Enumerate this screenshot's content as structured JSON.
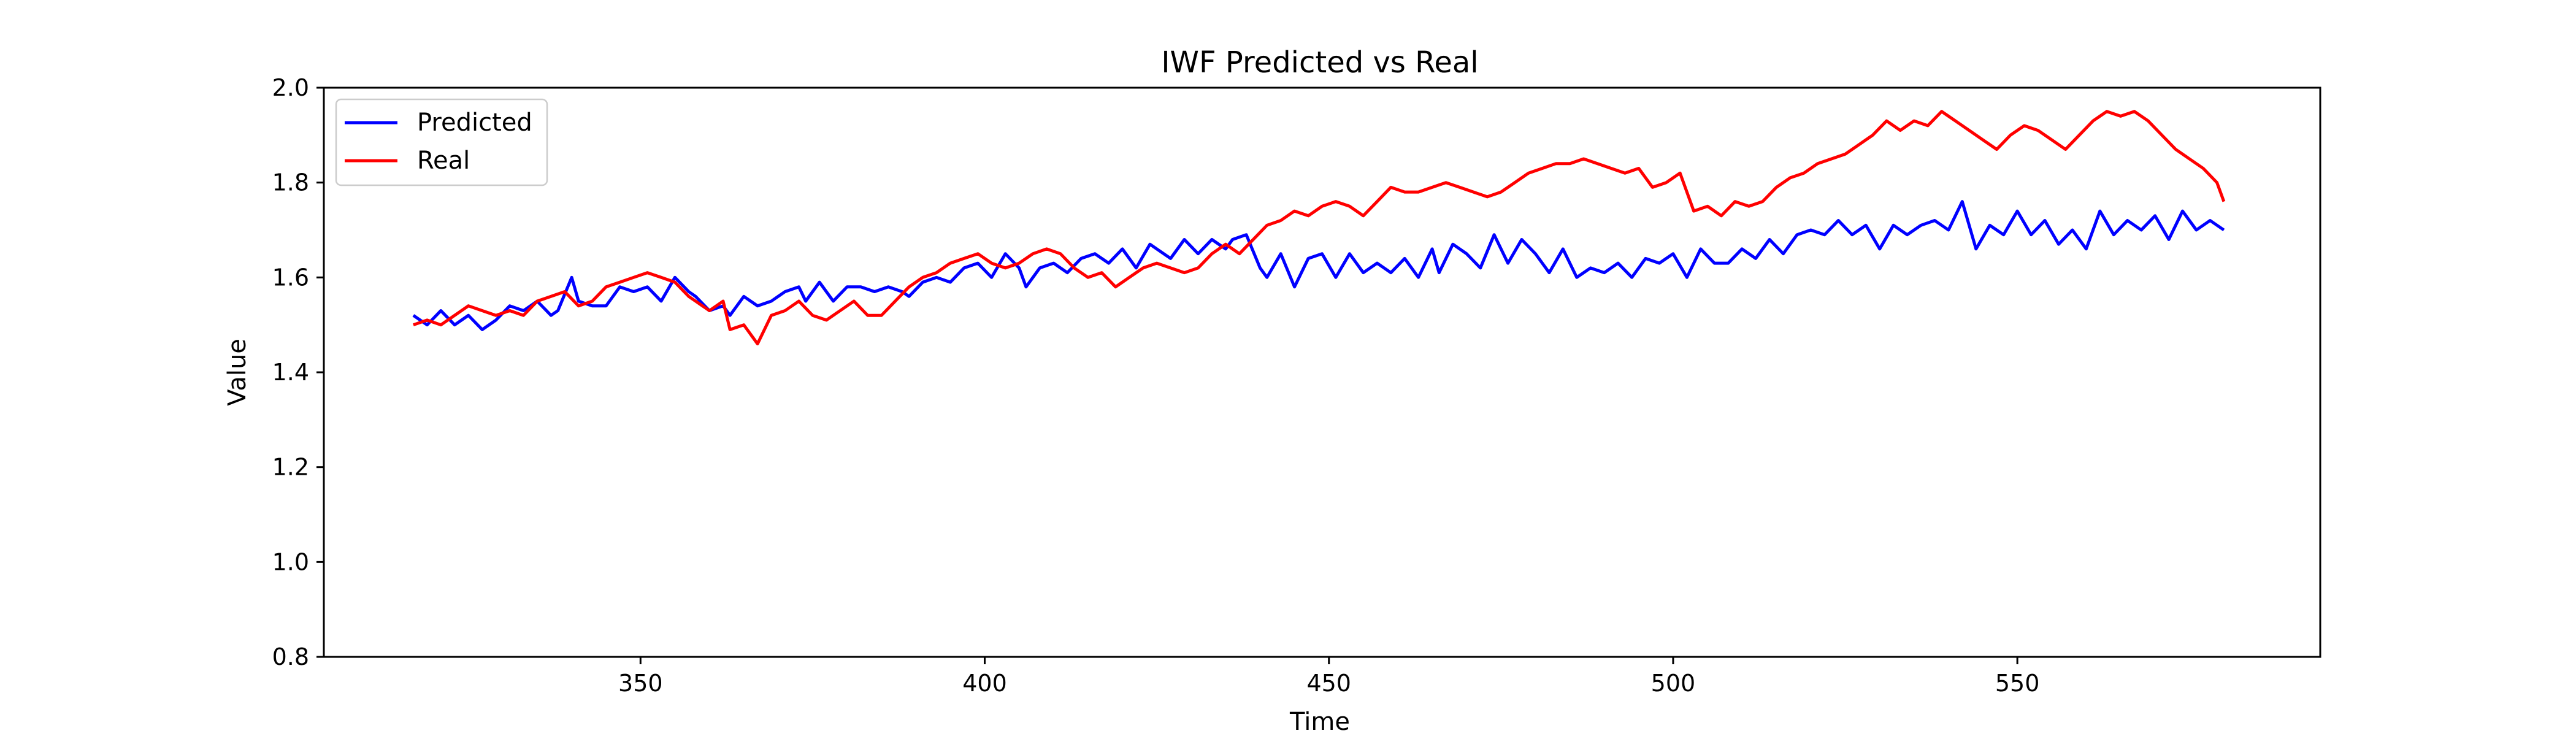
{
  "chart_data": {
    "type": "line",
    "title": "IWF Predicted vs Real",
    "xlabel": "Time",
    "ylabel": "Value",
    "xlim": [
      304,
      594
    ],
    "ylim": [
      0.8,
      2.0
    ],
    "xticks": [
      350,
      400,
      450,
      500,
      550
    ],
    "yticks": [
      0.8,
      1.0,
      1.2,
      1.4,
      1.6,
      1.8,
      2.0
    ],
    "xtick_labels": [
      "350",
      "400",
      "450",
      "500",
      "550"
    ],
    "ytick_labels": [
      "0.8",
      "1.0",
      "1.2",
      "1.4",
      "1.6",
      "1.8",
      "2.0"
    ],
    "grid": false,
    "legend_position": "upper-left",
    "series": [
      {
        "name": "Predicted",
        "color": "#0000ff",
        "points": [
          [
            317,
            1.52
          ],
          [
            319,
            1.5
          ],
          [
            321,
            1.53
          ],
          [
            323,
            1.5
          ],
          [
            325,
            1.52
          ],
          [
            327,
            1.49
          ],
          [
            329,
            1.51
          ],
          [
            331,
            1.54
          ],
          [
            333,
            1.53
          ],
          [
            335,
            1.55
          ],
          [
            337,
            1.52
          ],
          [
            338,
            1.53
          ],
          [
            340,
            1.6
          ],
          [
            341,
            1.55
          ],
          [
            343,
            1.54
          ],
          [
            345,
            1.54
          ],
          [
            347,
            1.58
          ],
          [
            349,
            1.57
          ],
          [
            351,
            1.58
          ],
          [
            353,
            1.55
          ],
          [
            355,
            1.6
          ],
          [
            357,
            1.57
          ],
          [
            358,
            1.56
          ],
          [
            360,
            1.53
          ],
          [
            362,
            1.54
          ],
          [
            363,
            1.52
          ],
          [
            365,
            1.56
          ],
          [
            367,
            1.54
          ],
          [
            369,
            1.55
          ],
          [
            371,
            1.57
          ],
          [
            373,
            1.58
          ],
          [
            374,
            1.55
          ],
          [
            376,
            1.59
          ],
          [
            378,
            1.55
          ],
          [
            380,
            1.58
          ],
          [
            382,
            1.58
          ],
          [
            384,
            1.57
          ],
          [
            386,
            1.58
          ],
          [
            388,
            1.57
          ],
          [
            389,
            1.56
          ],
          [
            391,
            1.59
          ],
          [
            393,
            1.6
          ],
          [
            395,
            1.59
          ],
          [
            397,
            1.62
          ],
          [
            399,
            1.63
          ],
          [
            401,
            1.6
          ],
          [
            403,
            1.65
          ],
          [
            405,
            1.62
          ],
          [
            406,
            1.58
          ],
          [
            408,
            1.62
          ],
          [
            410,
            1.63
          ],
          [
            412,
            1.61
          ],
          [
            414,
            1.64
          ],
          [
            416,
            1.65
          ],
          [
            418,
            1.63
          ],
          [
            420,
            1.66
          ],
          [
            422,
            1.62
          ],
          [
            424,
            1.67
          ],
          [
            425,
            1.66
          ],
          [
            427,
            1.64
          ],
          [
            429,
            1.68
          ],
          [
            431,
            1.65
          ],
          [
            433,
            1.68
          ],
          [
            435,
            1.66
          ],
          [
            436,
            1.68
          ],
          [
            438,
            1.69
          ],
          [
            440,
            1.62
          ],
          [
            441,
            1.6
          ],
          [
            443,
            1.65
          ],
          [
            445,
            1.58
          ],
          [
            447,
            1.64
          ],
          [
            449,
            1.65
          ],
          [
            451,
            1.6
          ],
          [
            453,
            1.65
          ],
          [
            455,
            1.61
          ],
          [
            457,
            1.63
          ],
          [
            459,
            1.61
          ],
          [
            461,
            1.64
          ],
          [
            463,
            1.6
          ],
          [
            465,
            1.66
          ],
          [
            466,
            1.61
          ],
          [
            468,
            1.67
          ],
          [
            470,
            1.65
          ],
          [
            472,
            1.62
          ],
          [
            474,
            1.69
          ],
          [
            476,
            1.63
          ],
          [
            478,
            1.68
          ],
          [
            480,
            1.65
          ],
          [
            482,
            1.61
          ],
          [
            484,
            1.66
          ],
          [
            486,
            1.6
          ],
          [
            488,
            1.62
          ],
          [
            490,
            1.61
          ],
          [
            492,
            1.63
          ],
          [
            494,
            1.6
          ],
          [
            496,
            1.64
          ],
          [
            498,
            1.63
          ],
          [
            500,
            1.65
          ],
          [
            502,
            1.6
          ],
          [
            504,
            1.66
          ],
          [
            506,
            1.63
          ],
          [
            508,
            1.63
          ],
          [
            510,
            1.66
          ],
          [
            512,
            1.64
          ],
          [
            514,
            1.68
          ],
          [
            516,
            1.65
          ],
          [
            518,
            1.69
          ],
          [
            520,
            1.7
          ],
          [
            522,
            1.69
          ],
          [
            524,
            1.72
          ],
          [
            526,
            1.69
          ],
          [
            528,
            1.71
          ],
          [
            530,
            1.66
          ],
          [
            532,
            1.71
          ],
          [
            534,
            1.69
          ],
          [
            536,
            1.71
          ],
          [
            538,
            1.72
          ],
          [
            540,
            1.7
          ],
          [
            542,
            1.76
          ],
          [
            544,
            1.66
          ],
          [
            546,
            1.71
          ],
          [
            548,
            1.69
          ],
          [
            550,
            1.74
          ],
          [
            552,
            1.69
          ],
          [
            554,
            1.72
          ],
          [
            556,
            1.67
          ],
          [
            558,
            1.7
          ],
          [
            560,
            1.66
          ],
          [
            562,
            1.74
          ],
          [
            564,
            1.69
          ],
          [
            566,
            1.72
          ],
          [
            568,
            1.7
          ],
          [
            570,
            1.73
          ],
          [
            572,
            1.68
          ],
          [
            574,
            1.74
          ],
          [
            576,
            1.7
          ],
          [
            578,
            1.72
          ],
          [
            580,
            1.7
          ]
        ]
      },
      {
        "name": "Real",
        "color": "#ff0000",
        "points": [
          [
            317,
            1.5
          ],
          [
            319,
            1.51
          ],
          [
            321,
            1.5
          ],
          [
            323,
            1.52
          ],
          [
            325,
            1.54
          ],
          [
            327,
            1.53
          ],
          [
            329,
            1.52
          ],
          [
            331,
            1.53
          ],
          [
            333,
            1.52
          ],
          [
            335,
            1.55
          ],
          [
            337,
            1.56
          ],
          [
            339,
            1.57
          ],
          [
            341,
            1.54
          ],
          [
            343,
            1.55
          ],
          [
            345,
            1.58
          ],
          [
            347,
            1.59
          ],
          [
            349,
            1.6
          ],
          [
            351,
            1.61
          ],
          [
            353,
            1.6
          ],
          [
            355,
            1.59
          ],
          [
            357,
            1.56
          ],
          [
            358,
            1.55
          ],
          [
            360,
            1.53
          ],
          [
            362,
            1.55
          ],
          [
            363,
            1.49
          ],
          [
            365,
            1.5
          ],
          [
            367,
            1.46
          ],
          [
            369,
            1.52
          ],
          [
            371,
            1.53
          ],
          [
            373,
            1.55
          ],
          [
            375,
            1.52
          ],
          [
            377,
            1.51
          ],
          [
            379,
            1.53
          ],
          [
            381,
            1.55
          ],
          [
            383,
            1.52
          ],
          [
            385,
            1.52
          ],
          [
            387,
            1.55
          ],
          [
            389,
            1.58
          ],
          [
            391,
            1.6
          ],
          [
            393,
            1.61
          ],
          [
            395,
            1.63
          ],
          [
            397,
            1.64
          ],
          [
            399,
            1.65
          ],
          [
            401,
            1.63
          ],
          [
            403,
            1.62
          ],
          [
            405,
            1.63
          ],
          [
            407,
            1.65
          ],
          [
            409,
            1.66
          ],
          [
            411,
            1.65
          ],
          [
            413,
            1.62
          ],
          [
            415,
            1.6
          ],
          [
            417,
            1.61
          ],
          [
            419,
            1.58
          ],
          [
            421,
            1.6
          ],
          [
            423,
            1.62
          ],
          [
            425,
            1.63
          ],
          [
            427,
            1.62
          ],
          [
            429,
            1.61
          ],
          [
            431,
            1.62
          ],
          [
            433,
            1.65
          ],
          [
            435,
            1.67
          ],
          [
            437,
            1.65
          ],
          [
            439,
            1.68
          ],
          [
            441,
            1.71
          ],
          [
            443,
            1.72
          ],
          [
            445,
            1.74
          ],
          [
            447,
            1.73
          ],
          [
            449,
            1.75
          ],
          [
            451,
            1.76
          ],
          [
            453,
            1.75
          ],
          [
            455,
            1.73
          ],
          [
            457,
            1.76
          ],
          [
            459,
            1.79
          ],
          [
            461,
            1.78
          ],
          [
            463,
            1.78
          ],
          [
            465,
            1.79
          ],
          [
            467,
            1.8
          ],
          [
            469,
            1.79
          ],
          [
            471,
            1.78
          ],
          [
            473,
            1.77
          ],
          [
            475,
            1.78
          ],
          [
            477,
            1.8
          ],
          [
            479,
            1.82
          ],
          [
            481,
            1.83
          ],
          [
            483,
            1.84
          ],
          [
            485,
            1.84
          ],
          [
            487,
            1.85
          ],
          [
            489,
            1.84
          ],
          [
            491,
            1.83
          ],
          [
            493,
            1.82
          ],
          [
            495,
            1.83
          ],
          [
            497,
            1.79
          ],
          [
            499,
            1.8
          ],
          [
            501,
            1.82
          ],
          [
            503,
            1.74
          ],
          [
            505,
            1.75
          ],
          [
            507,
            1.73
          ],
          [
            509,
            1.76
          ],
          [
            511,
            1.75
          ],
          [
            513,
            1.76
          ],
          [
            515,
            1.79
          ],
          [
            517,
            1.81
          ],
          [
            519,
            1.82
          ],
          [
            521,
            1.84
          ],
          [
            523,
            1.85
          ],
          [
            525,
            1.86
          ],
          [
            527,
            1.88
          ],
          [
            529,
            1.9
          ],
          [
            531,
            1.93
          ],
          [
            533,
            1.91
          ],
          [
            535,
            1.93
          ],
          [
            537,
            1.92
          ],
          [
            539,
            1.95
          ],
          [
            541,
            1.93
          ],
          [
            543,
            1.91
          ],
          [
            545,
            1.89
          ],
          [
            547,
            1.87
          ],
          [
            549,
            1.9
          ],
          [
            551,
            1.92
          ],
          [
            553,
            1.91
          ],
          [
            555,
            1.89
          ],
          [
            557,
            1.87
          ],
          [
            559,
            1.9
          ],
          [
            561,
            1.93
          ],
          [
            563,
            1.95
          ],
          [
            565,
            1.94
          ],
          [
            567,
            1.95
          ],
          [
            569,
            1.93
          ],
          [
            571,
            1.9
          ],
          [
            573,
            1.87
          ],
          [
            575,
            1.85
          ],
          [
            577,
            1.83
          ],
          [
            579,
            1.8
          ],
          [
            580,
            1.76
          ]
        ]
      }
    ]
  }
}
